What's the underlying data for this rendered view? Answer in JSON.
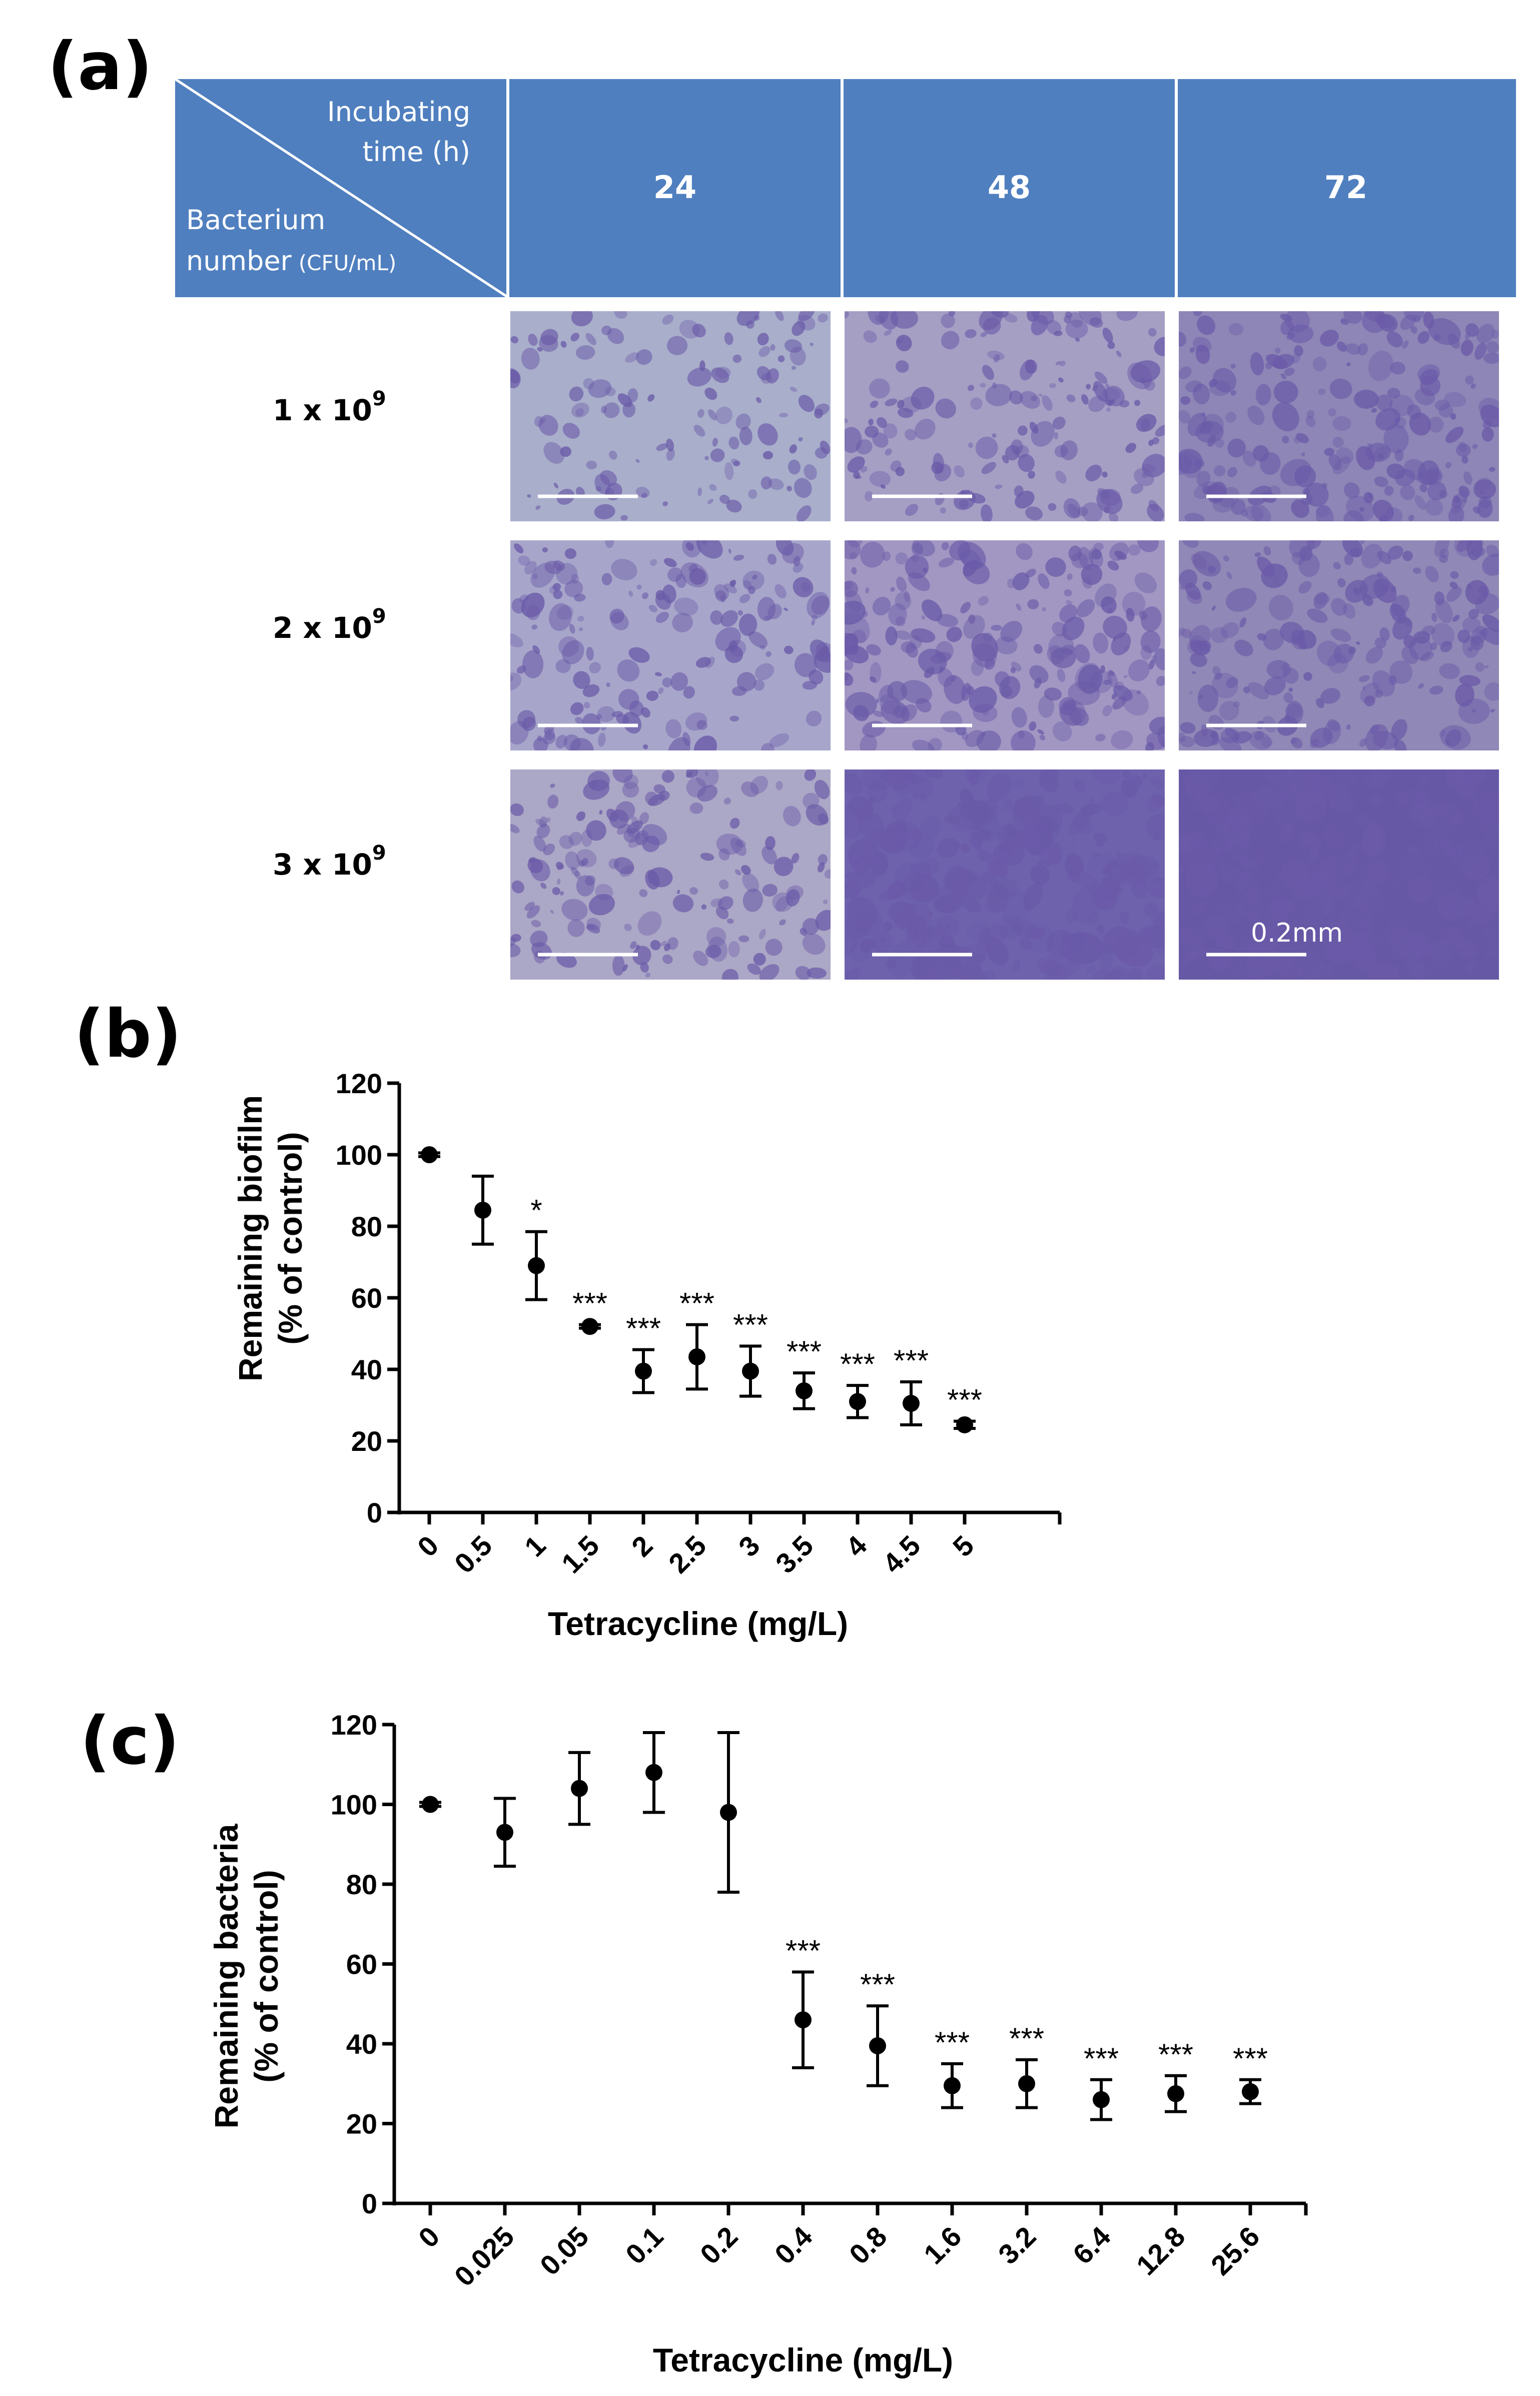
{
  "panel_a": {
    "label": "(a)",
    "header": {
      "corner_top_line1": "Incubating",
      "corner_top_line2": "time (h)",
      "corner_bottom_line1": "Bacterium",
      "corner_bottom_line2_main": "number",
      "corner_bottom_line2_unit": "(CFU/mL)",
      "columns": [
        "24",
        "48",
        "72"
      ]
    },
    "rows": [
      {
        "base": "1 x 10",
        "exp": "9"
      },
      {
        "base": "2 x 10",
        "exp": "9"
      },
      {
        "base": "3 x 10",
        "exp": "9"
      }
    ],
    "scale_bar_label": "0.2mm",
    "colors": {
      "header": "#4f7fbf",
      "header_divider": "#ffffff"
    },
    "micrographs": {
      "background_colors": [
        [
          "#a9aecb",
          "#a59fc4",
          "#8d86b6"
        ],
        [
          "#a7a6ca",
          "#a197c2",
          "#9088b6"
        ],
        [
          "#aba7c6",
          "#6e62ad",
          "#6658a5"
        ]
      ],
      "stain_color": "#6a5aa8",
      "coverage": [
        [
          0.25,
          0.4,
          0.55
        ],
        [
          0.4,
          0.55,
          0.55
        ],
        [
          0.4,
          0.8,
          0.85
        ]
      ]
    }
  },
  "panel_b": {
    "label": "(b)",
    "chart_data": {
      "type": "scatter",
      "x_categories": [
        "0",
        "0.5",
        "1",
        "1.5",
        "2",
        "2.5",
        "3",
        "3.5",
        "4",
        "4.5",
        "5"
      ],
      "values": [
        100,
        84.5,
        69,
        52,
        39.5,
        43.5,
        39.5,
        34,
        31,
        30.5,
        24.5
      ],
      "errors": [
        0.5,
        9.5,
        9.5,
        0.5,
        6,
        9,
        7,
        5,
        4.5,
        6,
        1
      ],
      "significance": [
        "",
        "",
        "*",
        "***",
        "***",
        "***",
        "***",
        "***",
        "***",
        "***",
        "***"
      ],
      "xlabel": "Tetracycline (mg/L)",
      "ylabel_line1": "Remaining biofilm",
      "ylabel_line2": "(% of control)",
      "ylim": [
        0,
        120
      ],
      "yticks": [
        "0",
        "20",
        "40",
        "60",
        "80",
        "100",
        "120"
      ],
      "grid": false
    }
  },
  "panel_c": {
    "label": "(c)",
    "chart_data": {
      "type": "scatter",
      "x_categories": [
        "0",
        "0.025",
        "0.05",
        "0.1",
        "0.2",
        "0.4",
        "0.8",
        "1.6",
        "3.2",
        "6.4",
        "12.8",
        "25.6"
      ],
      "values": [
        100,
        93,
        104,
        108,
        98,
        46,
        39.5,
        29.5,
        30,
        26,
        27.5,
        28
      ],
      "errors": [
        0.5,
        8.5,
        9,
        10,
        20,
        12,
        10,
        5.5,
        6,
        5,
        4.5,
        3
      ],
      "significance": [
        "",
        "",
        "",
        "",
        "",
        "***",
        "***",
        "***",
        "***",
        "***",
        "***",
        "***"
      ],
      "xlabel": "Tetracycline (mg/L)",
      "ylabel_line1": "Remaining bacteria",
      "ylabel_line2": "(% of control)",
      "ylim": [
        0,
        120
      ],
      "yticks": [
        "0",
        "20",
        "40",
        "60",
        "80",
        "100",
        "120"
      ],
      "grid": false
    }
  }
}
